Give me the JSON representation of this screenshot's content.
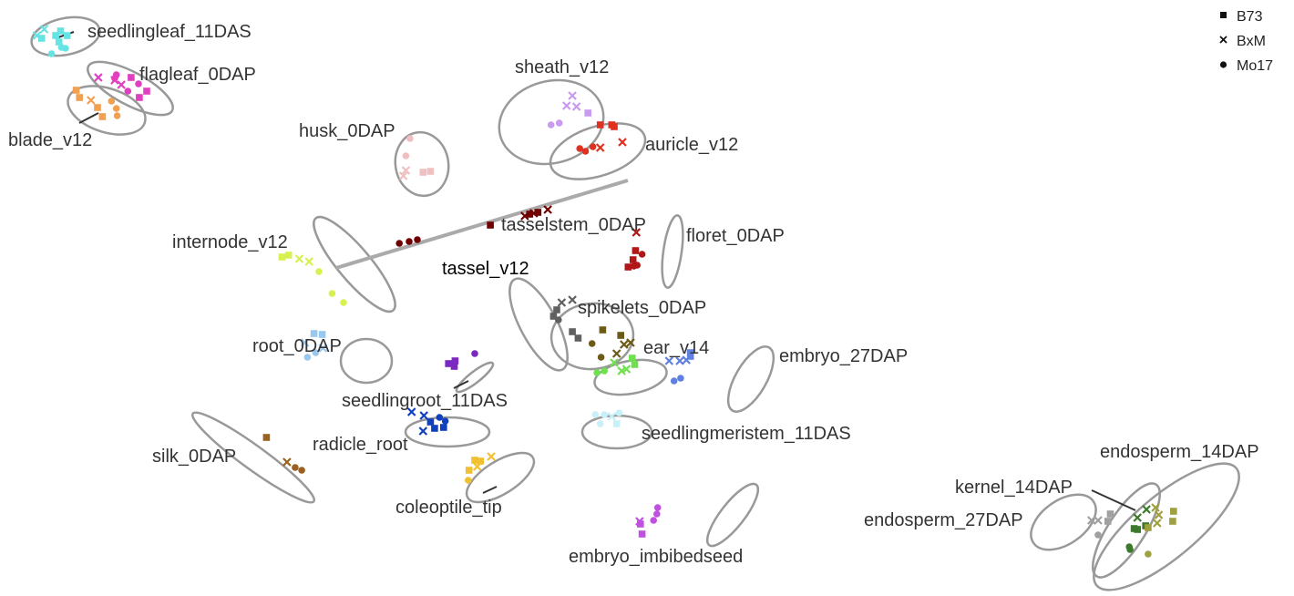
{
  "chart_data": {
    "type": "scatter",
    "title": "",
    "xlabel": "",
    "ylabel": "",
    "grid": false,
    "legend": {
      "position": "top-right",
      "entries": [
        {
          "label": "B73",
          "marker": "square"
        },
        {
          "label": "BxM",
          "marker": "cross"
        },
        {
          "label": "Mo17",
          "marker": "circle"
        }
      ]
    },
    "groups": [
      {
        "label": "seedlingleaf_11DAS",
        "color": "#66e3e3",
        "points": [
          [
            -84.5,
            -66.6,
            "x"
          ],
          [
            -83.1,
            -65.9,
            "s"
          ],
          [
            -82.5,
            -66.4,
            "s"
          ],
          [
            -81.7,
            -65.9,
            "s"
          ],
          [
            -84.8,
            -65.6,
            "s"
          ],
          [
            -82.7,
            -65.2,
            "s"
          ],
          [
            -83.6,
            -63.9,
            "o"
          ],
          [
            -82.4,
            -64.6,
            "o"
          ],
          [
            -81.9,
            -64.5,
            "o"
          ],
          [
            -85.4,
            -65.9,
            "x"
          ]
        ]
      },
      {
        "label": "flagleaf_0DAP",
        "color": "#e040c0",
        "points": [
          [
            -77.9,
            -61.3,
            "x"
          ],
          [
            -75.9,
            -61.0,
            "x"
          ],
          [
            -75.9,
            -61.2,
            "o"
          ],
          [
            -75.7,
            -61.6,
            "o"
          ],
          [
            -73.9,
            -61.3,
            "s"
          ],
          [
            -72.0,
            -59.8,
            "s"
          ],
          [
            -73.0,
            -60.6,
            "o"
          ],
          [
            -75.1,
            -60.5,
            "x"
          ],
          [
            -74.3,
            -59.8,
            "o"
          ],
          [
            -72.9,
            -59.1,
            "s"
          ]
        ]
      },
      {
        "label": "blade_v12",
        "color": "#f0a050",
        "points": [
          [
            -80.6,
            -59.9,
            "s"
          ],
          [
            -80.2,
            -59.1,
            "s"
          ],
          [
            -78.8,
            -58.8,
            "x"
          ],
          [
            -78.0,
            -58.0,
            "s"
          ],
          [
            -77.4,
            -57.0,
            "s"
          ],
          [
            -76.3,
            -58.7,
            "o"
          ],
          [
            -75.7,
            -57.9,
            "o"
          ],
          [
            -75.6,
            -57.1,
            "o"
          ]
        ]
      },
      {
        "label": "sheath_v12",
        "color": "#c89af0",
        "points": [
          [
            -20.1,
            -59.3,
            "x"
          ],
          [
            -20.8,
            -58.2,
            "x"
          ],
          [
            -19.6,
            -58.1,
            "x"
          ],
          [
            -18.2,
            -57.4,
            "s"
          ],
          [
            -22.7,
            -56.1,
            "o"
          ],
          [
            -21.7,
            -56.3,
            "o"
          ]
        ]
      },
      {
        "label": "auricle_v12",
        "color": "#e03020",
        "points": [
          [
            -16.7,
            -56.1,
            "s"
          ],
          [
            -15.3,
            -56.1,
            "s"
          ],
          [
            -15.0,
            -55.9,
            "s"
          ],
          [
            -14.0,
            -54.2,
            "x"
          ],
          [
            -16.7,
            -53.6,
            "x"
          ],
          [
            -19.2,
            -53.5,
            "o"
          ],
          [
            -18.5,
            -53.2,
            "o"
          ],
          [
            -17.6,
            -53.7,
            "o"
          ]
        ]
      },
      {
        "label": "husk_0DAP",
        "color": "#f0c0c0",
        "points": [
          [
            -39.9,
            -54.6,
            "o"
          ],
          [
            -40.4,
            -52.7,
            "o"
          ],
          [
            -40.4,
            -51.1,
            "x"
          ],
          [
            -40.7,
            -50.5,
            "x"
          ],
          [
            -38.3,
            -50.9,
            "s"
          ],
          [
            -37.4,
            -51.0,
            "s"
          ]
        ]
      },
      {
        "label": "tasselstem_0DAP",
        "color": "#700000",
        "points": [
          [
            -30.1,
            -45.1,
            "s"
          ],
          [
            -25.9,
            -46.1,
            "x"
          ],
          [
            -24.8,
            -46.4,
            "x"
          ],
          [
            -23.1,
            -46.8,
            "x"
          ],
          [
            -24.3,
            -46.5,
            "s"
          ],
          [
            -25.3,
            -46.3,
            "s"
          ],
          [
            -39.0,
            -43.5,
            "o"
          ],
          [
            -40.0,
            -43.3,
            "o"
          ],
          [
            -41.2,
            -43.1,
            "o"
          ]
        ]
      },
      {
        "label": "internode_v12",
        "color": "#d8f050",
        "points": [
          [
            -54.7,
            -41.8,
            "s"
          ],
          [
            -55.5,
            -41.6,
            "s"
          ],
          [
            -53.4,
            -41.4,
            "x"
          ],
          [
            -52.2,
            -41.1,
            "x"
          ],
          [
            -51.0,
            -40.0,
            "o"
          ],
          [
            -49.4,
            -37.6,
            "o"
          ],
          [
            -48.0,
            -36.6,
            "o"
          ]
        ]
      },
      {
        "label": "floret_0DAP",
        "color": "#b01818",
        "points": [
          [
            -12.3,
            -44.3,
            "x"
          ],
          [
            -12.4,
            -42.3,
            "s"
          ],
          [
            -12.7,
            -41.3,
            "s"
          ],
          [
            -11.6,
            -41.9,
            "o"
          ],
          [
            -12.6,
            -40.6,
            "o"
          ],
          [
            -12.2,
            -40.7,
            "o"
          ],
          [
            -13.3,
            -40.5,
            "s"
          ]
        ]
      },
      {
        "label": "tassel_v12",
        "color": "#606060",
        "points": [
          [
            -20.1,
            -36.9,
            "x"
          ],
          [
            -21.4,
            -36.6,
            "x"
          ],
          [
            -22.0,
            -35.8,
            "s"
          ],
          [
            -22.4,
            -35.1,
            "s"
          ],
          [
            -21.8,
            -34.7,
            "o"
          ],
          [
            -20.1,
            -33.4,
            "s"
          ],
          [
            -19.4,
            -32.7,
            "s"
          ]
        ]
      },
      {
        "label": "spikelets_0DAP",
        "color": "#6b5a18",
        "points": [
          [
            -16.4,
            -33.6,
            "s"
          ],
          [
            -14.2,
            -33.0,
            "s"
          ],
          [
            -17.7,
            -32.1,
            "o"
          ],
          [
            -13.8,
            -32.0,
            "x"
          ],
          [
            -13.0,
            -32.2,
            "x"
          ],
          [
            -14.7,
            -31.0,
            "x"
          ],
          [
            -16.6,
            -30.6,
            "o"
          ]
        ]
      },
      {
        "label": "ear_v14",
        "color": "#70e050",
        "points": [
          [
            -12.8,
            -30.5,
            "s"
          ],
          [
            -12.5,
            -29.8,
            "s"
          ],
          [
            -15.0,
            -30.0,
            "x"
          ],
          [
            -14.1,
            -29.1,
            "x"
          ],
          [
            -13.5,
            -29.3,
            "x"
          ],
          [
            -16.2,
            -29.1,
            "o"
          ],
          [
            -17.1,
            -28.9,
            "o"
          ]
        ]
      },
      {
        "label": "root_0DAP",
        "color": "#98c8f0",
        "points": [
          [
            -51.6,
            -33.2,
            "s"
          ],
          [
            -50.6,
            -33.1,
            "s"
          ],
          [
            -52.7,
            -32.2,
            "x"
          ],
          [
            -50.5,
            -31.6,
            "x"
          ],
          [
            -51.4,
            -31.1,
            "o"
          ],
          [
            -52.4,
            -30.6,
            "o"
          ]
        ]
      },
      {
        "label": "seedlingroot_11DAS",
        "color": "#7a28c0",
        "points": [
          [
            -35.2,
            -29.9,
            "s"
          ],
          [
            -34.4,
            -30.2,
            "s"
          ],
          [
            -32.0,
            -31.0,
            "o"
          ],
          [
            -34.5,
            -29.6,
            "s"
          ]
        ]
      },
      {
        "label": "embryo_27DAP",
        "color": "#6080e0",
        "points": [
          [
            -5.7,
            -31.1,
            "s"
          ],
          [
            -5.7,
            -30.7,
            "s"
          ],
          [
            -8.3,
            -30.2,
            "x"
          ],
          [
            -7.0,
            -30.2,
            "x"
          ],
          [
            -6.2,
            -30.3,
            "x"
          ],
          [
            -6.9,
            -28.3,
            "o"
          ],
          [
            -7.7,
            -28.0,
            "o"
          ]
        ]
      },
      {
        "label": "radicle_root",
        "color": "#1040c0",
        "points": [
          [
            -39.7,
            -24.6,
            "x"
          ],
          [
            -38.2,
            -24.2,
            "x"
          ],
          [
            -36.3,
            -24.0,
            "o"
          ],
          [
            -37.4,
            -23.5,
            "s"
          ],
          [
            -35.6,
            -23.6,
            "o"
          ],
          [
            -36.9,
            -22.8,
            "s"
          ],
          [
            -38.3,
            -22.5,
            "x"
          ],
          [
            -35.8,
            -22.9,
            "s"
          ]
        ]
      },
      {
        "label": "seedlingmeristem_11DAS",
        "color": "#c8f0f8",
        "points": [
          [
            -17.3,
            -24.3,
            "o"
          ],
          [
            -16.2,
            -24.3,
            "o"
          ],
          [
            -15.3,
            -24.1,
            "x"
          ],
          [
            -14.4,
            -24.5,
            "o"
          ],
          [
            -16.7,
            -23.3,
            "o"
          ],
          [
            -14.7,
            -23.3,
            "s"
          ]
        ]
      },
      {
        "label": "silk_0DAP",
        "color": "#9a6020",
        "points": [
          [
            -57.4,
            -21.8,
            "s"
          ],
          [
            -54.9,
            -19.1,
            "x"
          ],
          [
            -53.9,
            -18.5,
            "o"
          ],
          [
            -53.1,
            -18.2,
            "o"
          ]
        ]
      },
      {
        "label": "coleoptile_tip",
        "color": "#f0c030",
        "points": [
          [
            -30.0,
            -19.7,
            "x"
          ],
          [
            -31.7,
            -18.6,
            "x"
          ],
          [
            -31.3,
            -19.2,
            "s"
          ],
          [
            -32.0,
            -19.3,
            "s"
          ],
          [
            -32.7,
            -18.2,
            "s"
          ],
          [
            -32.8,
            -17.1,
            "o"
          ]
        ]
      },
      {
        "label": "embryo_imbibedseed",
        "color": "#c050e0",
        "points": [
          [
            -9.7,
            -14.1,
            "o"
          ],
          [
            -9.8,
            -13.4,
            "o"
          ],
          [
            -11.9,
            -12.6,
            "x"
          ],
          [
            -11.8,
            -12.3,
            "s"
          ],
          [
            -11.6,
            -11.2,
            "s"
          ],
          [
            -10.2,
            -12.7,
            "o"
          ]
        ]
      },
      {
        "label": "endosperm_27DAP",
        "color": "#a0a0a0",
        "points": [
          [
            45.5,
            -13.4,
            "s"
          ],
          [
            45.2,
            -12.6,
            "s"
          ],
          [
            44.0,
            -12.7,
            "x"
          ],
          [
            43.2,
            -12.7,
            "x"
          ],
          [
            44.0,
            -11.1,
            "o"
          ]
        ]
      },
      {
        "label": "kernel_14DAP",
        "color": "#3a7a2a",
        "points": [
          [
            49.9,
            -13.9,
            "x"
          ],
          [
            48.8,
            -13.0,
            "x"
          ],
          [
            49.8,
            -12.1,
            "s"
          ],
          [
            48.8,
            -11.7,
            "s"
          ],
          [
            48.4,
            -11.8,
            "s"
          ],
          [
            47.9,
            -9.5,
            "o"
          ],
          [
            47.8,
            -9.8,
            "o"
          ]
        ]
      },
      {
        "label": "endosperm_14DAP",
        "color": "#a0a040",
        "points": [
          [
            53.2,
            -13.7,
            "s"
          ],
          [
            53.1,
            -12.6,
            "s"
          ],
          [
            51.0,
            -14.1,
            "x"
          ],
          [
            51.4,
            -13.3,
            "x"
          ],
          [
            51.2,
            -12.4,
            "x"
          ],
          [
            50.1,
            -11.9,
            "s"
          ],
          [
            50.1,
            -9.0,
            "o"
          ]
        ]
      }
    ]
  }
}
